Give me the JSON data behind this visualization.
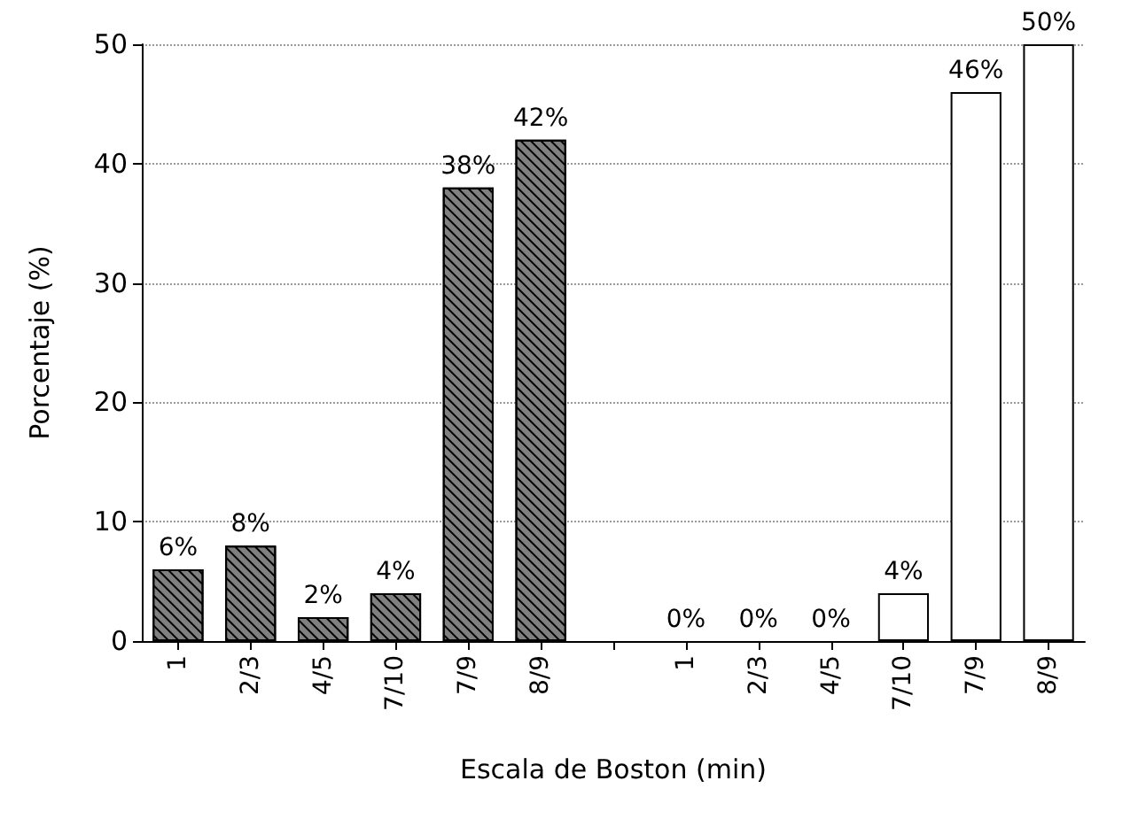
{
  "chart_data": {
    "type": "bar",
    "xlabel": "Escala de Boston (min)",
    "ylabel": "Porcentaje (%)",
    "categories": [
      "1",
      "2/3",
      "4/5",
      "7/10",
      "7/9",
      "8/9",
      null,
      "1",
      "2/3",
      "4/5",
      "7/10",
      "7/9",
      "8/9"
    ],
    "series": [
      {
        "color": "#808080",
        "values": [
          6,
          8,
          2,
          4,
          38,
          42,
          null,
          null,
          null,
          null,
          null,
          null,
          null
        ],
        "value_labels": [
          "6%",
          "8%",
          "2%",
          "4%",
          "38%",
          "42%",
          null,
          null,
          null,
          null,
          null,
          null,
          null
        ]
      },
      {
        "color": "#ffffff",
        "values": [
          null,
          null,
          null,
          null,
          null,
          null,
          null,
          0,
          0,
          0,
          4,
          46,
          50
        ],
        "value_labels": [
          null,
          null,
          null,
          null,
          null,
          null,
          null,
          "0%",
          "0%",
          "0%",
          "4%",
          "46%",
          "50%"
        ]
      }
    ],
    "ylim": [
      0,
      50
    ],
    "yticks": [
      0,
      10,
      20,
      30,
      40,
      50
    ],
    "grid": "y"
  }
}
